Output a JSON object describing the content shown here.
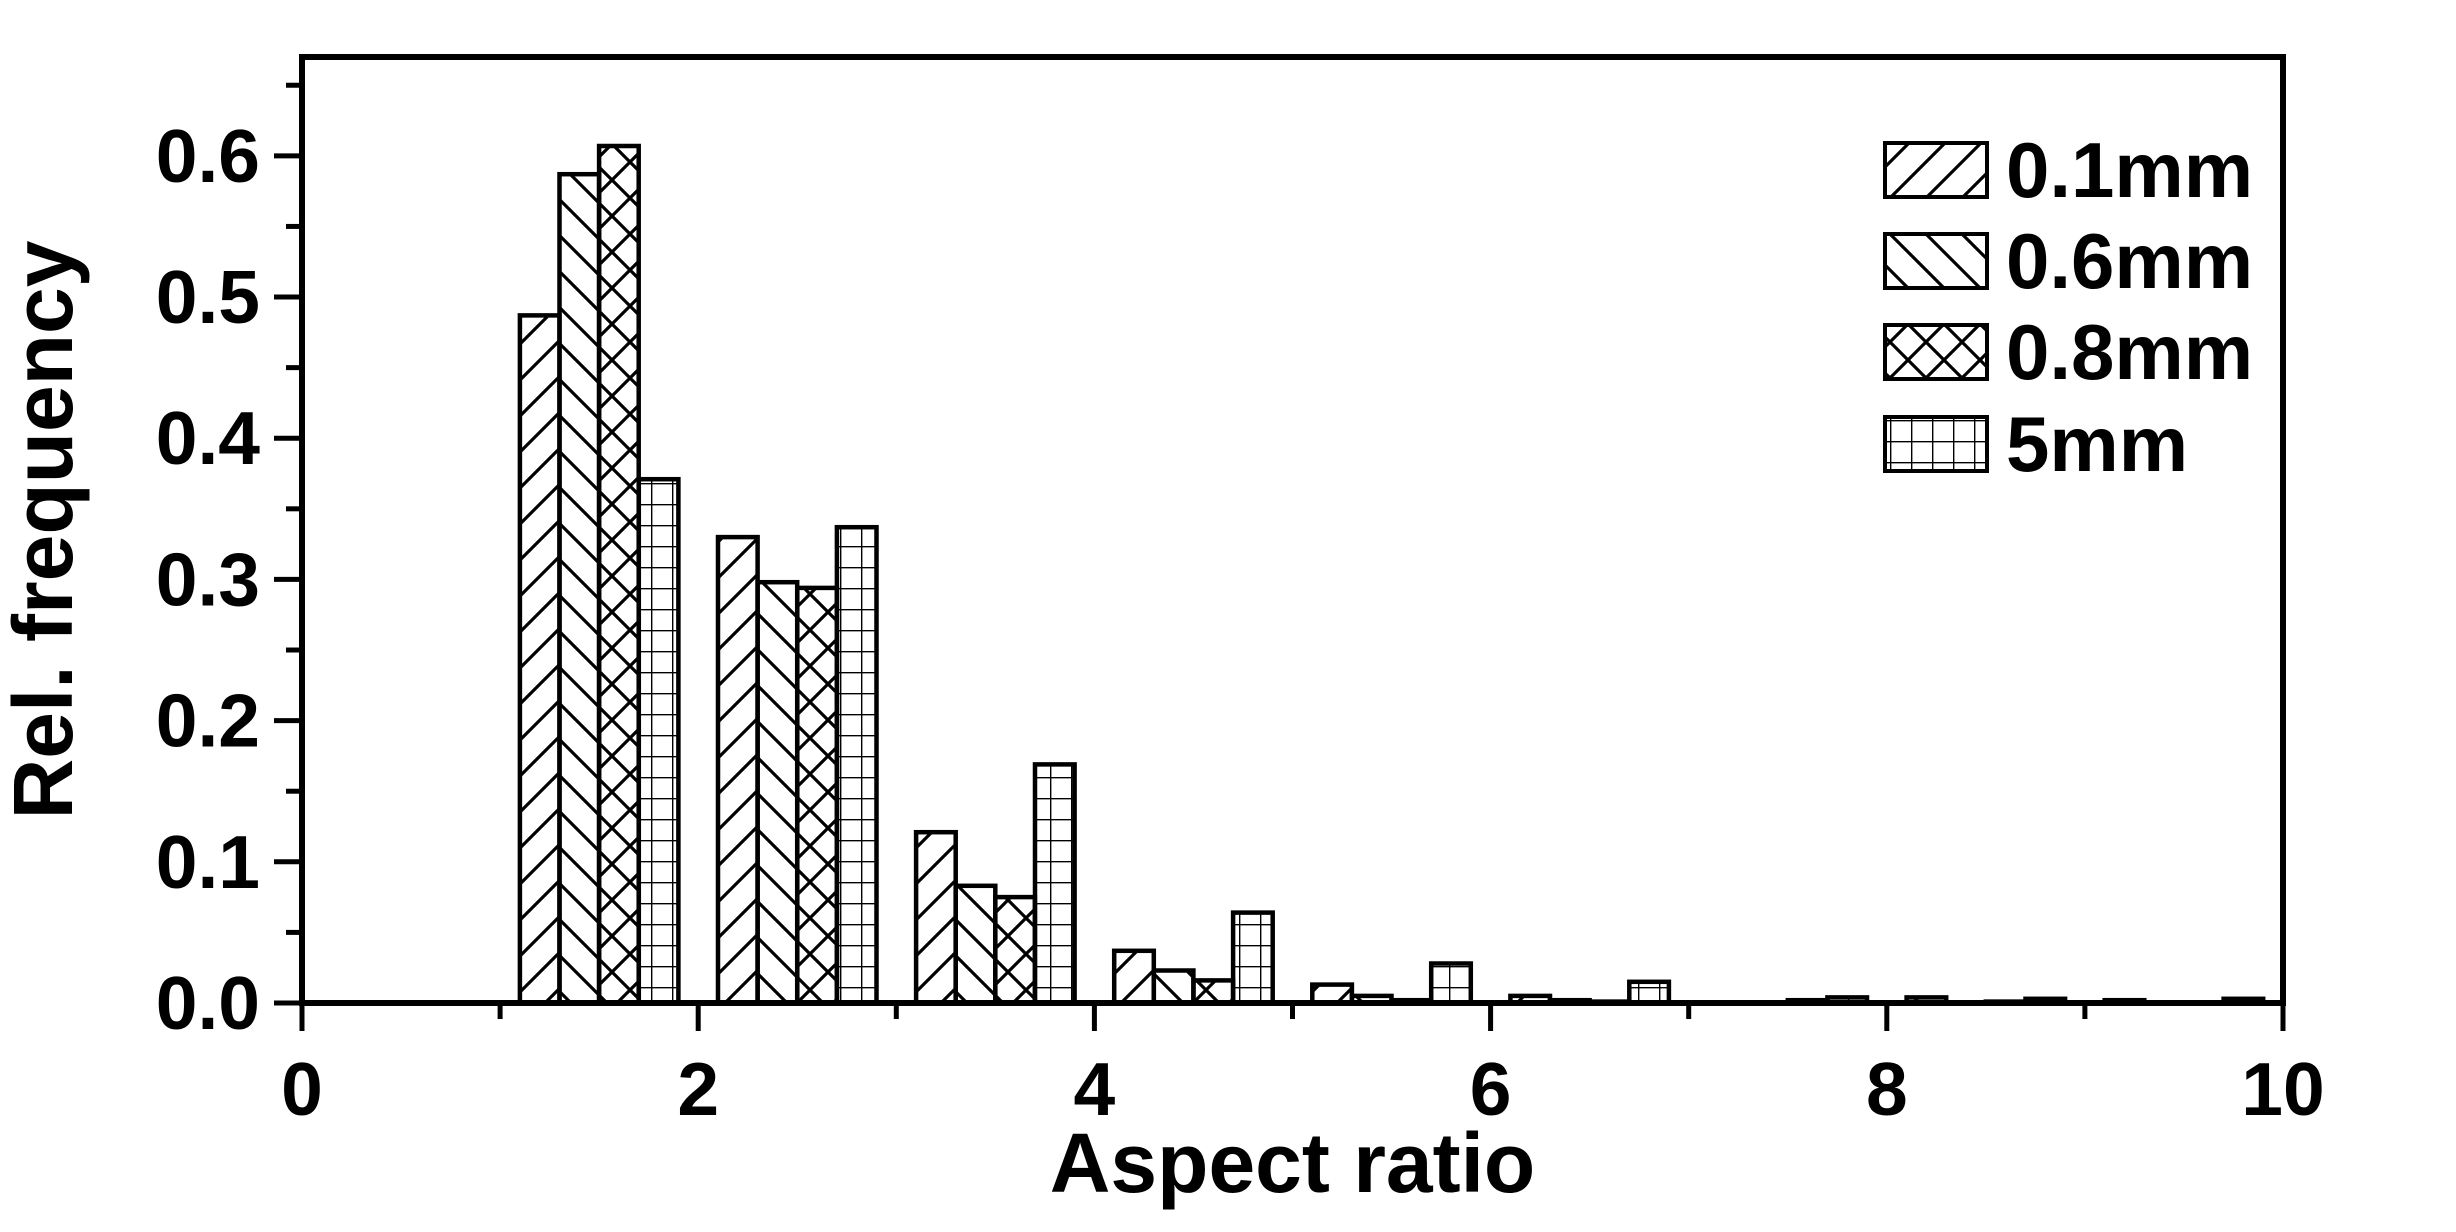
{
  "figure": {
    "background": "#ffffff",
    "ink_color": "#000000"
  },
  "chart_data": {
    "type": "bar",
    "subtype": "grouped-histogram",
    "title": "",
    "xlabel": "Aspect ratio",
    "ylabel": "Rel. frequency",
    "xlim": [
      0,
      10
    ],
    "ylim": [
      0,
      0.67
    ],
    "grid": false,
    "legend_position": "upper-right-inside",
    "x_major_ticks": [
      0,
      2,
      4,
      6,
      8,
      10
    ],
    "x_major_tick_labels": [
      "0",
      "2",
      "4",
      "6",
      "8",
      "10"
    ],
    "x_minor_ticks": [
      1,
      3,
      5,
      7,
      9
    ],
    "y_major_ticks": [
      0.0,
      0.1,
      0.2,
      0.3,
      0.4,
      0.5,
      0.6
    ],
    "y_major_tick_labels": [
      "0.0",
      "0.1",
      "0.2",
      "0.3",
      "0.4",
      "0.5",
      "0.6"
    ],
    "y_minor_ticks": [
      0.05,
      0.15,
      0.25,
      0.35,
      0.45,
      0.55,
      0.65
    ],
    "group_centers": [
      1.5,
      2.5,
      3.5,
      4.5,
      5.5,
      6.5,
      7.5,
      8.5,
      9.5
    ],
    "bar_width": 0.2,
    "series": [
      {
        "name": "0.1mm",
        "hatch": "diagonal-forward",
        "values": [
          0.487,
          0.33,
          0.121,
          0.037,
          0.013,
          0.005,
          0.0,
          0.004,
          0.002
        ]
      },
      {
        "name": "0.6mm",
        "hatch": "diagonal-backward",
        "values": [
          0.587,
          0.298,
          0.083,
          0.023,
          0.005,
          0.002,
          0.0,
          0.0,
          0.0
        ]
      },
      {
        "name": "0.8mm",
        "hatch": "crosshatch",
        "values": [
          0.607,
          0.294,
          0.075,
          0.016,
          0.002,
          0.001,
          0.002,
          0.001,
          0.0
        ]
      },
      {
        "name": "5mm",
        "hatch": "grid",
        "values": [
          0.371,
          0.337,
          0.169,
          0.064,
          0.028,
          0.015,
          0.004,
          0.003,
          0.003
        ]
      }
    ]
  }
}
